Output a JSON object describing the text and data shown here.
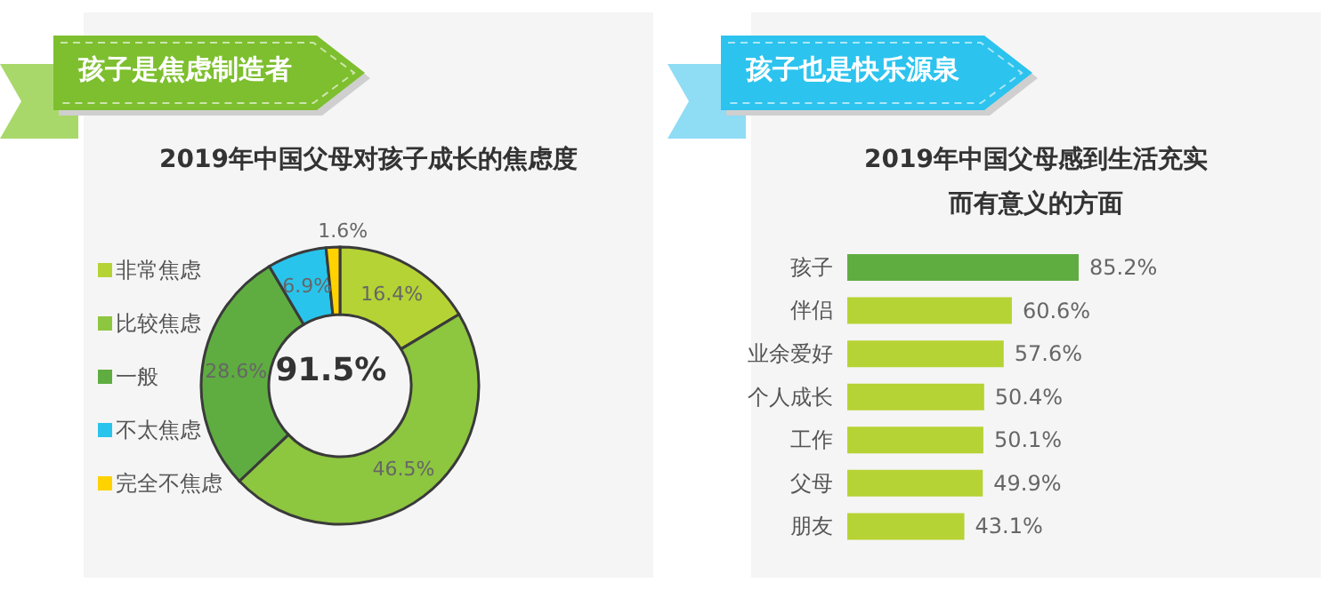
{
  "chart_data": [
    {
      "type": "donut",
      "title": "孩子是焦虑制造者",
      "subtitle": "2019年中国父母对孩子成长的焦虑度",
      "categories": [
        "非常焦虑",
        "比较焦虑",
        "一般",
        "不太焦虑",
        "完全不焦虑"
      ],
      "values": [
        16.4,
        46.5,
        28.6,
        6.9,
        1.6
      ],
      "colors": [
        "#b5d334",
        "#8dc63f",
        "#5fad41",
        "#29c4ec",
        "#ffd200"
      ],
      "value_labels": [
        "16.4%",
        "46.5%",
        "28.6%",
        "6.9%",
        "1.6%"
      ],
      "annotations": [
        "91.5%"
      ],
      "legend": "left"
    },
    {
      "type": "bar",
      "orientation": "horizontal",
      "title": "孩子也是快乐源泉",
      "subtitle": "2019年中国父母感到生活充实而有意义的方面",
      "categories": [
        "孩子",
        "伴侣",
        "业余爱好",
        "个人成长",
        "工作",
        "父母",
        "朋友"
      ],
      "values": [
        85.2,
        60.6,
        57.6,
        50.4,
        50.1,
        49.9,
        43.1
      ],
      "colors": [
        "#5fad41",
        "#b5d334",
        "#b5d334",
        "#b5d334",
        "#b5d334",
        "#b5d334",
        "#b5d334"
      ],
      "value_labels": [
        "85.2%",
        "60.6%",
        "57.6%",
        "50.4%",
        "50.1%",
        "49.9%",
        "43.1%"
      ],
      "tick_labels": "y"
    }
  ]
}
